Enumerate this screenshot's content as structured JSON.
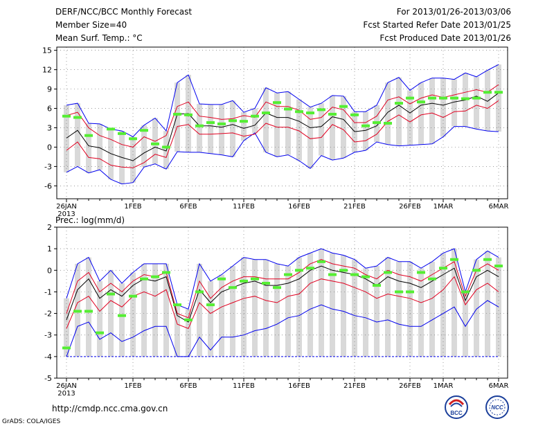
{
  "header": {
    "title": "DERF/NCC/BCC Monthly Forecast",
    "member_size": "Member Size=40",
    "variable": "Mean Surf. Temp.: °C",
    "period": "For 2013/01/26-2013/03/06",
    "started": "Fcst Started Refer Date 2013/01/25",
    "produced": "Fcst Produced Date 2013/01/26"
  },
  "footer": {
    "url": "http://cmdp.ncc.cma.gov.cn",
    "grads": "GrADS: COLA/IGES",
    "logo1": "BCC",
    "logo2": "NCC"
  },
  "colors": {
    "box": "#d9d9d9",
    "median": "#000000",
    "spread": "#e00020",
    "extreme": "#0000ee",
    "obs": "#55ee33"
  },
  "chart_data": [
    {
      "type": "line",
      "title": "Mean Surf. Temp.: °C",
      "xtick_labels": [
        "26JAN",
        "1FEB",
        "6FEB",
        "11FEB",
        "16FEB",
        "21FEB",
        "26FEB",
        "1MAR",
        "6MAR"
      ],
      "xtick_days": [
        0,
        6,
        11,
        16,
        21,
        26,
        31,
        34,
        39
      ],
      "year_label": "2013",
      "ylim": [
        -8,
        15.5
      ],
      "yticks": [
        -6,
        -3,
        0,
        3,
        6,
        9,
        12,
        15
      ],
      "series": [
        {
          "name": "max",
          "values": [
            6.5,
            6.8,
            3.7,
            3.6,
            2.8,
            2.5,
            1.6,
            3.4,
            4.5,
            2.5,
            10.0,
            11.2,
            6.7,
            6.6,
            6.6,
            7.2,
            5.4,
            6.0,
            9.2,
            8.4,
            8.6,
            7.4,
            6.2,
            6.8,
            8.0,
            7.9,
            5.5,
            5.5,
            6.5,
            10.0,
            10.8,
            8.8,
            10.0,
            10.7,
            10.7,
            10.5,
            11.5,
            10.9,
            11.9,
            12.8
          ]
        },
        {
          "name": "upper",
          "values": [
            4.9,
            5.4,
            3.0,
            1.8,
            1.2,
            0.4,
            0.0,
            1.6,
            0.9,
            1.8,
            6.3,
            7.0,
            4.8,
            4.6,
            4.3,
            4.4,
            4.9,
            4.6,
            7.0,
            6.3,
            6.3,
            5.7,
            4.3,
            4.6,
            6.2,
            5.8,
            3.8,
            3.8,
            4.8,
            7.3,
            7.8,
            6.7,
            7.6,
            8.1,
            7.7,
            8.1,
            8.5,
            8.9,
            8.5,
            9.7
          ]
        },
        {
          "name": "median",
          "values": [
            1.4,
            2.6,
            0.2,
            -0.1,
            -1.0,
            -1.6,
            -2.1,
            -0.9,
            0.0,
            -0.6,
            5.1,
            5.2,
            3.3,
            3.3,
            3.1,
            3.5,
            2.9,
            3.4,
            5.3,
            4.6,
            4.6,
            4.0,
            3.0,
            3.2,
            4.7,
            4.3,
            2.4,
            2.6,
            3.3,
            5.4,
            6.5,
            5.3,
            6.5,
            6.8,
            6.5,
            7.0,
            7.3,
            7.9,
            7.1,
            8.4
          ]
        },
        {
          "name": "lower",
          "values": [
            -0.5,
            0.8,
            -1.6,
            -1.8,
            -2.8,
            -3.1,
            -3.2,
            -2.4,
            -1.1,
            -1.6,
            3.2,
            3.5,
            2.0,
            2.0,
            2.1,
            2.2,
            1.7,
            2.0,
            3.7,
            3.1,
            3.1,
            2.5,
            1.3,
            1.5,
            3.5,
            2.7,
            0.8,
            1.0,
            2.0,
            4.0,
            5.0,
            3.9,
            5.0,
            5.3,
            4.6,
            5.5,
            5.6,
            6.5,
            6.0,
            7.2
          ]
        },
        {
          "name": "min",
          "values": [
            -3.9,
            -3.0,
            -4.0,
            -3.5,
            -5.0,
            -5.7,
            -5.5,
            -3.1,
            -2.6,
            -3.4,
            -0.7,
            -0.8,
            -0.8,
            -1.0,
            -1.2,
            -1.5,
            1.0,
            2.2,
            -0.8,
            -1.5,
            -1.2,
            -2.1,
            -3.3,
            -1.3,
            -2.0,
            -1.7,
            -0.8,
            -0.5,
            0.8,
            0.4,
            0.2,
            0.3,
            0.4,
            0.5,
            1.6,
            3.2,
            3.2,
            2.8,
            2.5,
            2.4
          ]
        },
        {
          "name": "observed",
          "values": [
            4.8,
            4.6,
            1.8,
            null,
            2.8,
            2.1,
            1.3,
            2.6,
            0.5,
            0.0,
            5.1,
            5.0,
            3.3,
            3.8,
            3.6,
            4.1,
            4.0,
            4.8,
            5.3,
            6.9,
            5.9,
            5.5,
            5.3,
            5.8,
            5.1,
            6.3,
            5.0,
            3.3,
            3.8,
            3.7,
            6.8,
            7.6,
            7.0,
            7.6,
            7.6,
            7.6,
            7.5,
            7.6,
            8.5,
            8.5
          ]
        }
      ]
    },
    {
      "type": "line",
      "title": "Prec.: log(mm/d)",
      "xtick_labels": [
        "26JAN",
        "1FEB",
        "6FEB",
        "11FEB",
        "16FEB",
        "21FEB",
        "26FEB",
        "1MAR",
        "6MAR"
      ],
      "xtick_days": [
        0,
        6,
        11,
        16,
        21,
        26,
        31,
        34,
        39
      ],
      "year_label": "2013",
      "ylim": [
        -5,
        2
      ],
      "yticks": [
        -5,
        -4,
        -3,
        -2,
        -1,
        0,
        1,
        2
      ],
      "series": [
        {
          "name": "max",
          "values": [
            -1.3,
            0.3,
            0.6,
            -0.5,
            0.0,
            -0.6,
            -0.1,
            0.3,
            0.3,
            0.3,
            -1.6,
            -1.8,
            0.3,
            -0.5,
            -0.2,
            0.2,
            0.6,
            0.5,
            0.5,
            0.3,
            0.2,
            0.6,
            0.8,
            1.0,
            0.8,
            0.7,
            0.5,
            0.1,
            0.2,
            0.6,
            0.4,
            0.4,
            0.1,
            0.4,
            0.8,
            1.0,
            -1.0,
            0.5,
            0.9,
            0.6
          ]
        },
        {
          "name": "upper",
          "values": [
            -2.0,
            -0.5,
            -0.1,
            -1.0,
            -0.6,
            -1.0,
            -0.5,
            -0.2,
            -0.3,
            -0.1,
            -2.0,
            -2.2,
            -0.5,
            -1.3,
            -0.8,
            -0.5,
            -0.3,
            -0.3,
            -0.4,
            -0.4,
            -0.4,
            -0.1,
            0.3,
            0.5,
            0.3,
            0.2,
            0.1,
            -0.2,
            -0.4,
            0.0,
            -0.2,
            -0.3,
            -0.5,
            -0.2,
            0.1,
            0.4,
            -1.2,
            0.0,
            0.3,
            0.0
          ]
        },
        {
          "name": "median",
          "values": [
            -2.3,
            -0.9,
            -0.4,
            -1.3,
            -0.9,
            -1.2,
            -0.7,
            -0.4,
            -0.5,
            -0.3,
            -2.1,
            -2.4,
            -0.9,
            -1.5,
            -1.0,
            -0.8,
            -0.6,
            -0.5,
            -0.7,
            -0.7,
            -0.6,
            -0.4,
            0.0,
            0.2,
            0.0,
            -0.1,
            -0.2,
            -0.4,
            -0.7,
            -0.3,
            -0.5,
            -0.6,
            -0.8,
            -0.5,
            -0.2,
            0.1,
            -1.4,
            -0.3,
            0.0,
            -0.3
          ]
        },
        {
          "name": "lower",
          "values": [
            -2.7,
            -1.5,
            -1.2,
            -1.9,
            -1.4,
            -1.7,
            -1.2,
            -1.0,
            -1.2,
            -0.9,
            -2.5,
            -2.7,
            -1.5,
            -2.0,
            -1.7,
            -1.5,
            -1.3,
            -1.2,
            -1.4,
            -1.5,
            -1.2,
            -1.1,
            -0.6,
            -0.4,
            -0.5,
            -0.6,
            -0.8,
            -1.0,
            -1.3,
            -1.1,
            -1.2,
            -1.3,
            -1.5,
            -1.3,
            -0.9,
            -0.3,
            -1.6,
            -0.9,
            -0.6,
            -1.0
          ]
        },
        {
          "name": "min",
          "values": [
            -4.0,
            -2.6,
            -2.4,
            -3.2,
            -2.9,
            -3.3,
            -3.1,
            -2.8,
            -2.6,
            -2.6,
            -4.0,
            -4.0,
            -3.1,
            -3.7,
            -3.1,
            -3.1,
            -3.0,
            -2.8,
            -2.7,
            -2.5,
            -2.2,
            -2.1,
            -1.8,
            -1.6,
            -1.8,
            -1.9,
            -2.1,
            -2.2,
            -2.4,
            -2.3,
            -2.5,
            -2.6,
            -2.6,
            -2.3,
            -2.0,
            -1.7,
            -2.6,
            -1.8,
            -1.4,
            -1.7
          ]
        },
        {
          "name": "observed",
          "values": [
            -3.6,
            -1.9,
            -1.9,
            -2.9,
            -1.1,
            -2.1,
            -1.2,
            -0.4,
            -0.3,
            -0.1,
            -1.6,
            -2.3,
            -1.0,
            -1.6,
            -0.4,
            -0.8,
            -0.5,
            -0.4,
            -0.6,
            -0.8,
            -0.2,
            0.0,
            0.1,
            0.4,
            -0.2,
            0.0,
            -0.2,
            -0.3,
            -0.7,
            -0.1,
            -1.0,
            -1.0,
            -0.1,
            -0.4,
            0.1,
            0.5,
            -1.0,
            0.0,
            0.5,
            0.2
          ]
        },
        {
          "name": "floor",
          "values": [
            -4,
            -4,
            -4,
            -4,
            -4,
            -4,
            -4,
            -4,
            -4,
            -4,
            -4,
            -4,
            -4,
            -4,
            -4,
            -4,
            -4,
            -4,
            -4,
            -4,
            -4,
            -4,
            -4,
            -4,
            -4,
            -4,
            -4,
            -4,
            -4,
            -4,
            -4,
            -4,
            -4,
            -4,
            -4,
            -4,
            -4,
            -4,
            -4,
            -4
          ]
        }
      ]
    }
  ]
}
